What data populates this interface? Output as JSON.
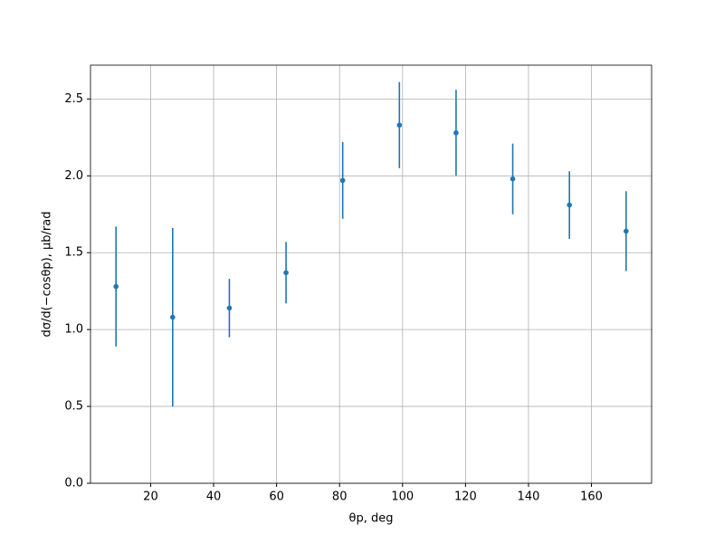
{
  "chart_data": {
    "type": "errorbar",
    "xlabel": "θp, deg",
    "ylabel": "dσ/d(−cosθp), μb/rad",
    "x": [
      9,
      27,
      45,
      63,
      81,
      99,
      117,
      135,
      153,
      171
    ],
    "series": [
      {
        "color": "#1f77b4",
        "values": [
          1.28,
          1.08,
          1.14,
          1.37,
          1.97,
          2.33,
          2.28,
          1.98,
          1.81,
          1.64
        ],
        "errors": [
          0.39,
          0.58,
          0.19,
          0.2,
          0.25,
          0.28,
          0.28,
          0.23,
          0.22,
          0.26
        ]
      }
    ],
    "xlim": [
      0.9,
      179.1
    ],
    "ylim": [
      0,
      2.72
    ],
    "xticks": [
      20,
      40,
      60,
      80,
      100,
      120,
      140,
      160
    ],
    "yticks": [
      {
        "value": 0,
        "label": "0.0"
      },
      0.5,
      {
        "value": 1,
        "label": "1.0"
      },
      1.5,
      {
        "value": 2,
        "label": "2.0"
      },
      2.5
    ],
    "grid": true
  }
}
